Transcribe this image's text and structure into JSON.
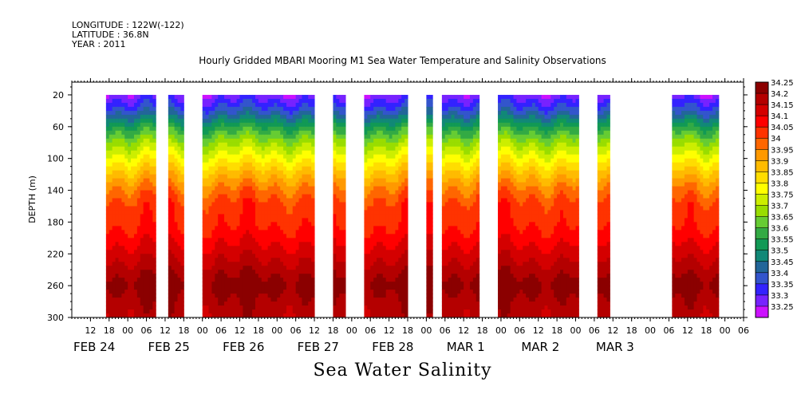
{
  "header": {
    "longitude": "LONGITUDE : 122W(-122)",
    "latitude": "LATITUDE : 36.8N",
    "year": "YEAR : 2011"
  },
  "chart_data": {
    "type": "heatmap",
    "title": "Hourly Gridded MBARI Mooring M1 Sea Water Temperature and Salinity Observations",
    "subtitle": "Sea Water Salinity",
    "ylabel": "DEPTH (m)",
    "xlabel": "",
    "x_unit": "hours since FEB 24 00:00",
    "xlim": [
      6,
      222
    ],
    "ylim": [
      300,
      4
    ],
    "y_ticks": [
      20,
      60,
      100,
      140,
      180,
      220,
      260,
      300
    ],
    "x_hour_ticks": [
      "12",
      "18",
      "00",
      "06",
      "12",
      "18",
      "00",
      "06",
      "12",
      "18",
      "00",
      "06",
      "12",
      "18",
      "00",
      "06",
      "12",
      "18",
      "00",
      "06",
      "12",
      "18",
      "00",
      "06",
      "12",
      "18",
      "00",
      "06",
      "12",
      "18",
      "00",
      "06",
      "12",
      "18",
      "00",
      "06"
    ],
    "x_day_labels": [
      "FEB 24",
      "FEB 25",
      "FEB 26",
      "FEB 27",
      "FEB 28",
      "MAR  1",
      "MAR  2",
      "MAR  3"
    ],
    "colorbar_levels": [
      "34.25",
      "34.2",
      "34.15",
      "34.1",
      "34.05",
      "34",
      "33.95",
      "33.9",
      "33.85",
      "33.8",
      "33.75",
      "33.7",
      "33.65",
      "33.6",
      "33.55",
      "33.5",
      "33.45",
      "33.4",
      "33.35",
      "33.3",
      "33.25"
    ],
    "colors": [
      "#8b0000",
      "#b40000",
      "#d40000",
      "#ff0000",
      "#ff3300",
      "#ff6600",
      "#ff9900",
      "#ffbb00",
      "#ffdd00",
      "#ffff00",
      "#ccee00",
      "#99dd00",
      "#66cc33",
      "#33aa44",
      "#119955",
      "#118877",
      "#226699",
      "#3355cc",
      "#3322ff",
      "#7722ff",
      "#cc11ff"
    ],
    "data_segments_hours": [
      [
        17,
        33
      ],
      [
        37,
        42
      ],
      [
        48,
        84
      ],
      [
        90,
        94
      ],
      [
        100,
        114
      ],
      [
        120,
        122
      ],
      [
        125,
        137
      ],
      [
        143,
        169
      ],
      [
        175,
        179
      ],
      [
        199,
        214
      ]
    ],
    "salinity_profile": [
      {
        "depth": 20,
        "value": 33.27
      },
      {
        "depth": 40,
        "value": 33.38
      },
      {
        "depth": 60,
        "value": 33.55
      },
      {
        "depth": 80,
        "value": 33.68
      },
      {
        "depth": 100,
        "value": 33.78
      },
      {
        "depth": 120,
        "value": 33.88
      },
      {
        "depth": 140,
        "value": 33.97
      },
      {
        "depth": 160,
        "value": 34.03
      },
      {
        "depth": 180,
        "value": 34.04
      },
      {
        "depth": 200,
        "value": 34.08
      },
      {
        "depth": 220,
        "value": 34.13
      },
      {
        "depth": 240,
        "value": 34.18
      },
      {
        "depth": 260,
        "value": 34.23
      },
      {
        "depth": 280,
        "value": 34.19
      },
      {
        "depth": 300,
        "value": 34.17
      }
    ]
  }
}
